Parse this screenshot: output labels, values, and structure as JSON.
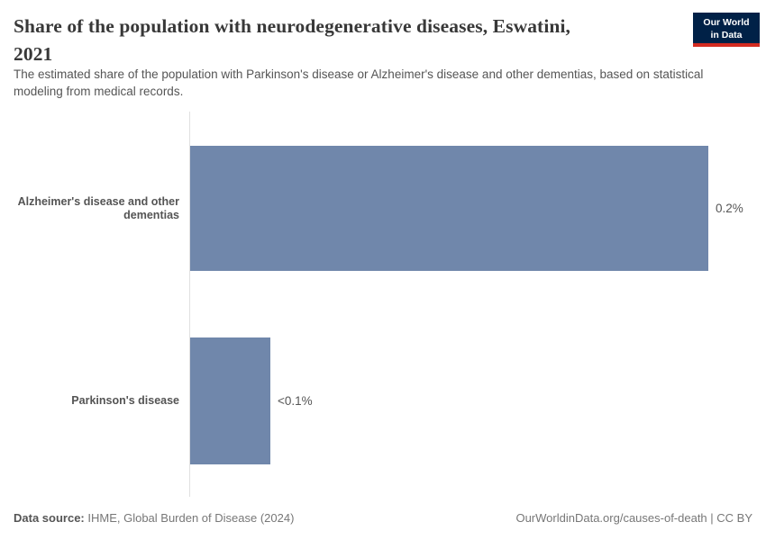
{
  "header": {
    "title_lines": [
      "Share of the population with neurodegenerative diseases, Eswatini,",
      "2021"
    ],
    "subtitle": "The estimated share of the population with Parkinson's disease or Alzheimer's disease and other dementias, based on statistical modeling from medical records."
  },
  "logo": {
    "line1": "Our World",
    "line2": "in Data",
    "bg_color": "#002147",
    "stripe_color": "#d42b21"
  },
  "chart_data": {
    "type": "bar",
    "orientation": "horizontal",
    "title": "Share of the population with neurodegenerative diseases, Eswatini, 2021",
    "categories": [
      "Alzheimer's disease and other dementias",
      "Parkinson's disease"
    ],
    "values": [
      0.2,
      0.031
    ],
    "value_labels": [
      "0.2%",
      "<0.1%"
    ],
    "xlabel": "",
    "ylabel": "",
    "xlim": [
      0,
      0.217
    ],
    "grid": false,
    "legend": false,
    "bar_color": "#7087ab",
    "axis_line_color": "#e0e0e0"
  },
  "footer": {
    "source_label": "Data source:",
    "source_text": " IHME, Global Burden of Disease (2024)",
    "credit": "OurWorldinData.org/causes-of-death | CC BY"
  }
}
